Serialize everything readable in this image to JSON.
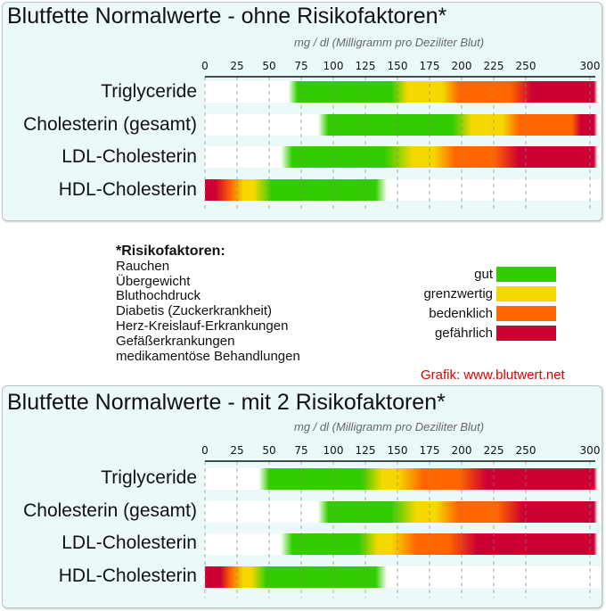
{
  "colors": {
    "gut": "#33cc00",
    "grenzwertig": "#f5d800",
    "bedenklich": "#ff6600",
    "gefaehrlich": "#cc0033"
  },
  "chart_data": [
    {
      "type": "bar",
      "title": "Blutfette Normalwerte - ohne Risikofaktoren*",
      "subtitle": "mg / dl (Milligramm pro Deziliter Blut)",
      "xlim": [
        0,
        300
      ],
      "ticks": [
        "0",
        "25",
        "50",
        "75",
        "100",
        "125",
        "150",
        "175",
        "200",
        "225",
        "250",
        "300"
      ],
      "tick_values": [
        0,
        25,
        50,
        75,
        100,
        125,
        150,
        175,
        200,
        225,
        250,
        300
      ],
      "grid": true,
      "rows": [
        {
          "label": "Triglyceride",
          "stops": [
            [
              65,
              "white"
            ],
            [
              72,
              "gut"
            ],
            [
              145,
              "gut"
            ],
            [
              158,
              "grenzwertig"
            ],
            [
              185,
              "grenzwertig"
            ],
            [
              198,
              "bedenklich"
            ],
            [
              238,
              "bedenklich"
            ],
            [
              255,
              "gefaehrlich"
            ],
            [
              303,
              "gefaehrlich"
            ],
            [
              306,
              "white"
            ]
          ]
        },
        {
          "label": "Cholesterin (gesamt)",
          "stops": [
            [
              88,
              "white"
            ],
            [
              96,
              "gut"
            ],
            [
              193,
              "gut"
            ],
            [
              208,
              "grenzwertig"
            ],
            [
              232,
              "grenzwertig"
            ],
            [
              245,
              "bedenklich"
            ],
            [
              286,
              "bedenklich"
            ],
            [
              293,
              "gefaehrlich"
            ],
            [
              303,
              "gefaehrlich"
            ],
            [
              306,
              "white"
            ]
          ]
        },
        {
          "label": "LDL-Cholesterin",
          "stops": [
            [
              59,
              "white"
            ],
            [
              68,
              "gut"
            ],
            [
              140,
              "gut"
            ],
            [
              162,
              "grenzwertig"
            ],
            [
              178,
              "grenzwertig"
            ],
            [
              195,
              "bedenklich"
            ],
            [
              225,
              "bedenklich"
            ],
            [
              245,
              "gefaehrlich"
            ],
            [
              303,
              "gefaehrlich"
            ],
            [
              306,
              "white"
            ]
          ]
        },
        {
          "label": "HDL-Cholesterin",
          "stops": [
            [
              0,
              "gefaehrlich"
            ],
            [
              8,
              "gefaehrlich"
            ],
            [
              20,
              "bedenklich"
            ],
            [
              30,
              "grenzwertig"
            ],
            [
              38,
              "grenzwertig"
            ],
            [
              52,
              "gut"
            ],
            [
              133,
              "gut"
            ],
            [
              142,
              "white"
            ]
          ]
        }
      ]
    },
    {
      "type": "bar",
      "title": "Blutfette Normalwerte - mit 2 Risikofaktoren*",
      "subtitle": "mg / dl (Milligramm pro Deziliter Blut)",
      "xlim": [
        0,
        300
      ],
      "ticks": [
        "0",
        "25",
        "50",
        "75",
        "100",
        "125",
        "150",
        "175",
        "200",
        "225",
        "250",
        "300"
      ],
      "tick_values": [
        0,
        25,
        50,
        75,
        100,
        125,
        150,
        175,
        200,
        225,
        250,
        300
      ],
      "grid": true,
      "rows": [
        {
          "label": "Triglyceride",
          "stops": [
            [
              42,
              "white"
            ],
            [
              50,
              "gut"
            ],
            [
              122,
              "gut"
            ],
            [
              138,
              "grenzwertig"
            ],
            [
              150,
              "grenzwertig"
            ],
            [
              170,
              "bedenklich"
            ],
            [
              198,
              "bedenklich"
            ],
            [
              220,
              "gefaehrlich"
            ],
            [
              303,
              "gefaehrlich"
            ],
            [
              306,
              "white"
            ]
          ]
        },
        {
          "label": "Cholesterin (gesamt)",
          "stops": [
            [
              88,
              "white"
            ],
            [
              96,
              "gut"
            ],
            [
              145,
              "gut"
            ],
            [
              165,
              "grenzwertig"
            ],
            [
              180,
              "grenzwertig"
            ],
            [
              197,
              "bedenklich"
            ],
            [
              228,
              "bedenklich"
            ],
            [
              248,
              "gefaehrlich"
            ],
            [
              303,
              "gefaehrlich"
            ],
            [
              306,
              "white"
            ]
          ]
        },
        {
          "label": "LDL-Cholesterin",
          "stops": [
            [
              59,
              "white"
            ],
            [
              68,
              "gut"
            ],
            [
              120,
              "gut"
            ],
            [
              135,
              "grenzwertig"
            ],
            [
              145,
              "grenzwertig"
            ],
            [
              165,
              "bedenklich"
            ],
            [
              190,
              "bedenklich"
            ],
            [
              212,
              "gefaehrlich"
            ],
            [
              303,
              "gefaehrlich"
            ],
            [
              306,
              "white"
            ]
          ]
        },
        {
          "label": "HDL-Cholesterin",
          "stops": [
            [
              0,
              "gefaehrlich"
            ],
            [
              12,
              "gefaehrlich"
            ],
            [
              20,
              "bedenklich"
            ],
            [
              30,
              "grenzwertig"
            ],
            [
              36,
              "grenzwertig"
            ],
            [
              48,
              "gut"
            ],
            [
              133,
              "gut"
            ],
            [
              142,
              "white"
            ]
          ]
        }
      ]
    }
  ],
  "risk": {
    "heading": "*Risikofaktoren:",
    "items": [
      "Rauchen",
      "Übergewicht",
      "Bluthochdruck",
      "Diabetis (Zuckerkrankheit)",
      "Herz-Kreislauf-Erkrankungen",
      "Gefäßerkrankungen",
      "medikamentöse Behandlungen"
    ]
  },
  "legend": [
    {
      "label": "gut",
      "color": "#33cc00"
    },
    {
      "label": "grenzwertig",
      "color": "#f5d800"
    },
    {
      "label": "bedenklich",
      "color": "#ff6600"
    },
    {
      "label": "gefährlich",
      "color": "#cc0033"
    }
  ],
  "credit": "Grafik: www.blutwert.net"
}
